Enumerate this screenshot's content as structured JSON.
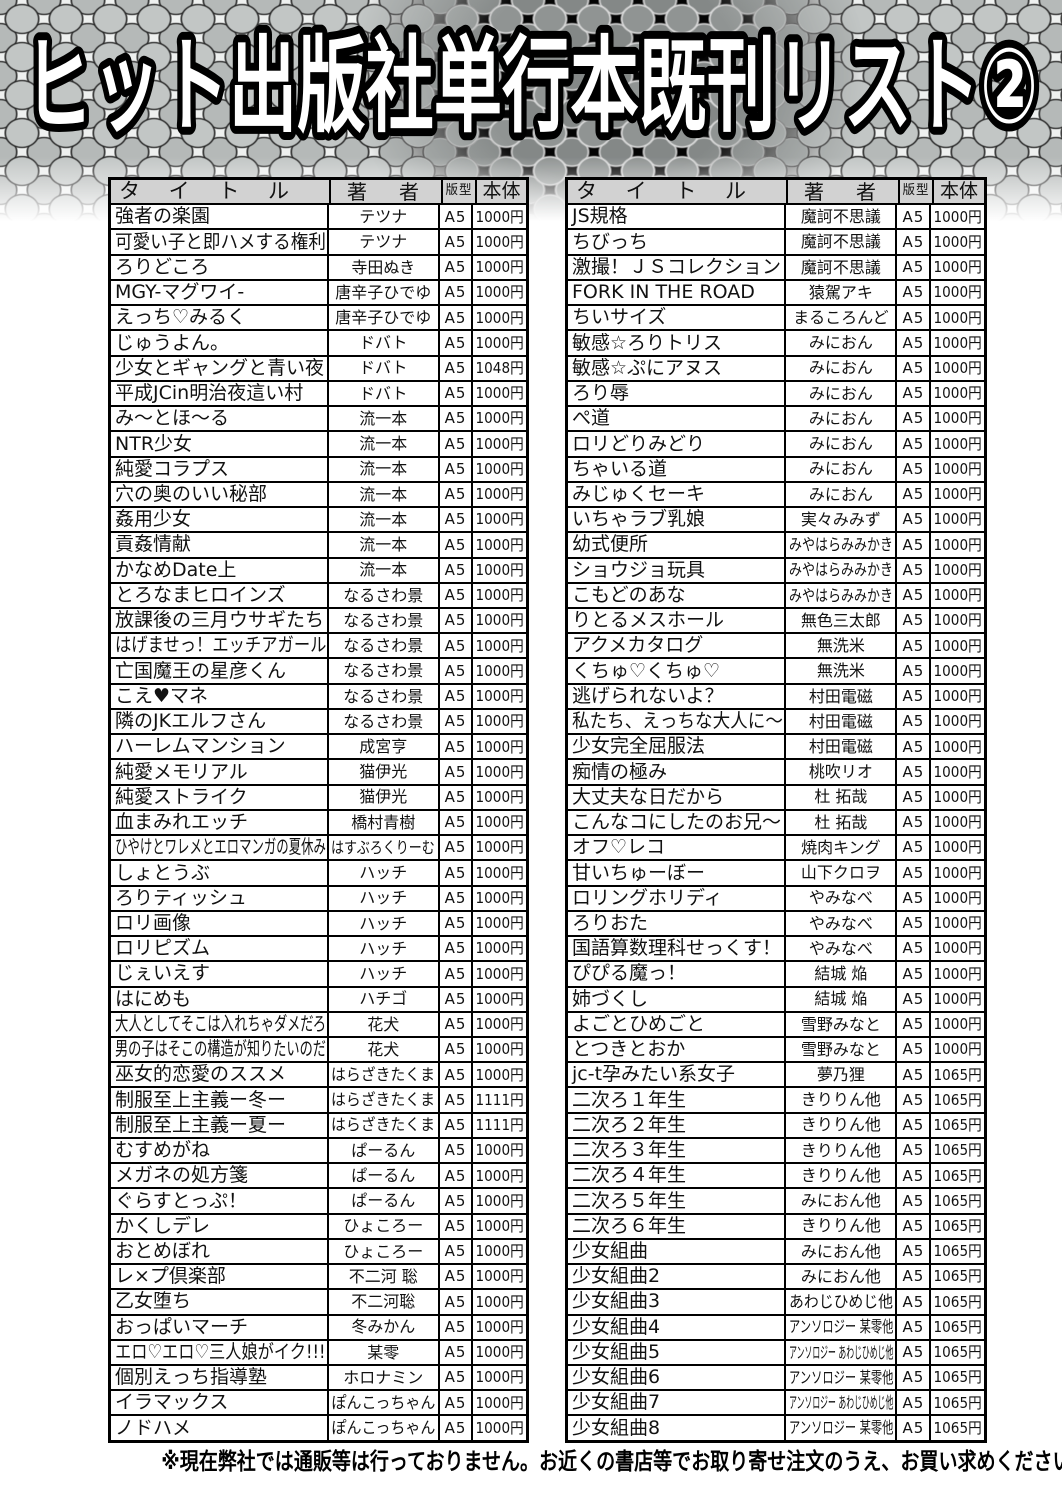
{
  "page_title": "ヒット出版社単行本既刊リスト②",
  "columns": {
    "title": "タ イ ト ル",
    "author": "著　者",
    "format": "版型",
    "price": "本体"
  },
  "colors": {
    "header_bg": "#d2d2d2",
    "table_border": "#000000",
    "title_fill": "#ffffff",
    "title_outline": "#000000",
    "page_bg": "#ffffff"
  },
  "tables": [
    {
      "side": "left",
      "rows": [
        [
          "強者の楽園",
          "テツナ",
          "A5",
          "1000円"
        ],
        [
          "可愛い子と即ハメする権利",
          "テツナ",
          "A5",
          "1000円"
        ],
        [
          "ろりどころ",
          "寺田ぬき",
          "A5",
          "1000円"
        ],
        [
          "MGY-マグワイ-",
          "唐辛子ひでゆ",
          "A5",
          "1000円"
        ],
        [
          "えっち♡みるく",
          "唐辛子ひでゆ",
          "A5",
          "1000円"
        ],
        [
          "じゅうよん。",
          "ドバト",
          "A5",
          "1000円"
        ],
        [
          "少女とギャングと青い夜",
          "ドバト",
          "A5",
          "1048円"
        ],
        [
          "平成JCin明治夜這い村",
          "ドバト",
          "A5",
          "1000円"
        ],
        [
          "み〜とほ〜る",
          "流一本",
          "A5",
          "1000円"
        ],
        [
          "NTR少女",
          "流一本",
          "A5",
          "1000円"
        ],
        [
          "純愛コラプス",
          "流一本",
          "A5",
          "1000円"
        ],
        [
          "穴の奥のいい秘部",
          "流一本",
          "A5",
          "1000円"
        ],
        [
          "姦用少女",
          "流一本",
          "A5",
          "1000円"
        ],
        [
          "貢姦情献",
          "流一本",
          "A5",
          "1000円"
        ],
        [
          "かなめDate上",
          "流一本",
          "A5",
          "1000円"
        ],
        [
          "とろなまヒロインズ",
          "なるさわ景",
          "A5",
          "1000円"
        ],
        [
          "放課後の三月ウサギたち",
          "なるさわ景",
          "A5",
          "1000円"
        ],
        [
          "はげませっ！エッチアガール",
          "なるさわ景",
          "A5",
          "1000円"
        ],
        [
          "亡国魔王の星彦くん",
          "なるさわ景",
          "A5",
          "1000円"
        ],
        [
          "こえ♥マネ",
          "なるさわ景",
          "A5",
          "1000円"
        ],
        [
          "隣のJKエルフさん",
          "なるさわ景",
          "A5",
          "1000円"
        ],
        [
          "ハーレムマンション",
          "成宮亨",
          "A5",
          "1000円"
        ],
        [
          "純愛メモリアル",
          "猫伊光",
          "A5",
          "1000円"
        ],
        [
          "純愛ストライク",
          "猫伊光",
          "A5",
          "1000円"
        ],
        [
          "血まみれエッチ",
          "橋村青樹",
          "A5",
          "1000円"
        ],
        [
          "ひやけとワレメとエロマンガの夏休み",
          "はすぶろくりーむ",
          "A5",
          "1000円"
        ],
        [
          "しょとうぶ",
          "ハッチ",
          "A5",
          "1000円"
        ],
        [
          "ろりティッシュ",
          "ハッチ",
          "A5",
          "1000円"
        ],
        [
          "ロリ画像",
          "ハッチ",
          "A5",
          "1000円"
        ],
        [
          "ロリピズム",
          "ハッチ",
          "A5",
          "1000円"
        ],
        [
          "じぇいえす",
          "ハッチ",
          "A5",
          "1000円"
        ],
        [
          "はにめも",
          "ハチゴ",
          "A5",
          "1000円"
        ],
        [
          "大人としてそこは入れちゃダメだろ",
          "花犬",
          "A5",
          "1000円"
        ],
        [
          "男の子はそこの構造が知りたいのだ",
          "花犬",
          "A5",
          "1000円"
        ],
        [
          "巫女的恋愛のススメ",
          "はらざきたくま",
          "A5",
          "1000円"
        ],
        [
          "制服至上主義ー冬ー",
          "はらざきたくま",
          "A5",
          "1111円"
        ],
        [
          "制服至上主義ー夏ー",
          "はらざきたくま",
          "A5",
          "1111円"
        ],
        [
          "むすめがね",
          "ぱーるん",
          "A5",
          "1000円"
        ],
        [
          "メガネの処方箋",
          "ぱーるん",
          "A5",
          "1000円"
        ],
        [
          "ぐらすとっぷ！",
          "ぱーるん",
          "A5",
          "1000円"
        ],
        [
          "かくしデレ",
          "ひょころー",
          "A5",
          "1000円"
        ],
        [
          "おとめぼれ",
          "ひょころー",
          "A5",
          "1000円"
        ],
        [
          "レ×プ倶楽部",
          "不二河 聡",
          "A5",
          "1000円"
        ],
        [
          "乙女堕ち",
          "不二河聡",
          "A5",
          "1000円"
        ],
        [
          "おっぱいマーチ",
          "冬みかん",
          "A5",
          "1000円"
        ],
        [
          "エロ♡エロ♡三人娘がイク!!!",
          "某零",
          "A5",
          "1000円"
        ],
        [
          "個別えっち指導塾",
          "ホロナミン",
          "A5",
          "1000円"
        ],
        [
          "イラマックス",
          "ぽんこっちゃん",
          "A5",
          "1000円"
        ],
        [
          "ノドハメ",
          "ぽんこっちゃん",
          "A5",
          "1000円"
        ]
      ]
    },
    {
      "side": "right",
      "rows": [
        [
          "JS規格",
          "魔訶不思議",
          "A5",
          "1000円"
        ],
        [
          "ちびっち",
          "魔訶不思議",
          "A5",
          "1000円"
        ],
        [
          "激撮！ＪＳコレクション",
          "魔訶不思議",
          "A5",
          "1000円"
        ],
        [
          "FORK IN THE ROAD",
          "猿駕アキ",
          "A5",
          "1000円"
        ],
        [
          "ちいサイズ",
          "まるころんど",
          "A5",
          "1000円"
        ],
        [
          "敏感☆ろりトリス",
          "みにおん",
          "A5",
          "1000円"
        ],
        [
          "敏感☆ぷにアヌス",
          "みにおん",
          "A5",
          "1000円"
        ],
        [
          "ろり辱",
          "みにおん",
          "A5",
          "1000円"
        ],
        [
          "ぺ道",
          "みにおん",
          "A5",
          "1000円"
        ],
        [
          "ロリどりみどり",
          "みにおん",
          "A5",
          "1000円"
        ],
        [
          "ちゃいる道",
          "みにおん",
          "A5",
          "1000円"
        ],
        [
          "みじゅくセーキ",
          "みにおん",
          "A5",
          "1000円"
        ],
        [
          "いちゃラブ乳娘",
          "実々みみず",
          "A5",
          "1000円"
        ],
        [
          "幼式便所",
          "みやはらみみかき",
          "A5",
          "1000円"
        ],
        [
          "ショウジョ玩具",
          "みやはらみみかき",
          "A5",
          "1000円"
        ],
        [
          "こもどのあな",
          "みやはらみみかき",
          "A5",
          "1000円"
        ],
        [
          "りとるメスホール",
          "無色三太郎",
          "A5",
          "1000円"
        ],
        [
          "アクメカタログ",
          "無洗米",
          "A5",
          "1000円"
        ],
        [
          "くちゅ♡くちゅ♡",
          "無洗米",
          "A5",
          "1000円"
        ],
        [
          "逃げられないよ？",
          "村田電磁",
          "A5",
          "1000円"
        ],
        [
          "私たち、えっちな大人に〜",
          "村田電磁",
          "A5",
          "1000円"
        ],
        [
          "少女完全屈服法",
          "村田電磁",
          "A5",
          "1000円"
        ],
        [
          "痴情の極み",
          "桃吹リオ",
          "A5",
          "1000円"
        ],
        [
          "大丈夫な日だから",
          "杜 拓哉",
          "A5",
          "1000円"
        ],
        [
          "こんなコにしたのお兄〜",
          "杜 拓哉",
          "A5",
          "1000円"
        ],
        [
          "オフ♡レコ",
          "焼肉キング",
          "A5",
          "1000円"
        ],
        [
          "甘いちゅーぼー",
          "山下クロヲ",
          "A5",
          "1000円"
        ],
        [
          "ロリングホリディ",
          "やみなべ",
          "A5",
          "1000円"
        ],
        [
          "ろりおた",
          "やみなべ",
          "A5",
          "1000円"
        ],
        [
          "国語算数理科せっくす！",
          "やみなべ",
          "A5",
          "1000円"
        ],
        [
          "ぴぴる魔っ！",
          "結城 焔",
          "A5",
          "1000円"
        ],
        [
          "姉づくし",
          "結城 焔",
          "A5",
          "1000円"
        ],
        [
          "よごとひめごと",
          "雪野みなと",
          "A5",
          "1000円"
        ],
        [
          "とつきとおか",
          "雪野みなと",
          "A5",
          "1000円"
        ],
        [
          "jc-t孕みたい系女子",
          "夢乃狸",
          "A5",
          "1065円"
        ],
        [
          "二次ろ１年生",
          "きりりん他",
          "A5",
          "1065円"
        ],
        [
          "二次ろ２年生",
          "きりりん他",
          "A5",
          "1065円"
        ],
        [
          "二次ろ３年生",
          "きりりん他",
          "A5",
          "1065円"
        ],
        [
          "二次ろ４年生",
          "きりりん他",
          "A5",
          "1065円"
        ],
        [
          "二次ろ５年生",
          "みにおん他",
          "A5",
          "1065円"
        ],
        [
          "二次ろ６年生",
          "きりりん他",
          "A5",
          "1065円"
        ],
        [
          "少女組曲",
          "みにおん他",
          "A5",
          "1065円"
        ],
        [
          "少女組曲2",
          "みにおん他",
          "A5",
          "1065円"
        ],
        [
          "少女組曲3",
          "あわじひめじ他",
          "A5",
          "1065円"
        ],
        [
          "少女組曲4",
          "アンソロジー 某零他",
          "A5",
          "1065円"
        ],
        [
          "少女組曲5",
          "アンソロジー あわじひめじ他",
          "A5",
          "1065円"
        ],
        [
          "少女組曲6",
          "アンソロジー 某零他",
          "A5",
          "1065円"
        ],
        [
          "少女組曲7",
          "アンソロジー あわじひめじ他",
          "A5",
          "1065円"
        ],
        [
          "少女組曲8",
          "アンソロジー 某零他",
          "A5",
          "1065円"
        ]
      ]
    }
  ],
  "footer": "※現在弊社では通販等は行っておりません。お近くの書店等でお取り寄せ注文のうえ、お買い求めください。"
}
